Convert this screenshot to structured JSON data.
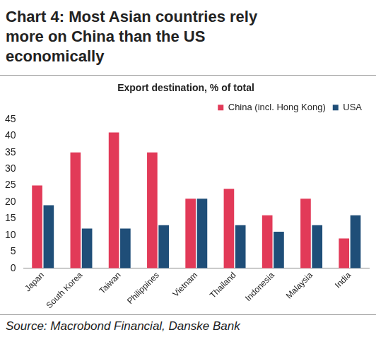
{
  "chart_data": {
    "type": "bar",
    "title": "Chart 4: Most Asian countries rely more on China than the US economically",
    "subtitle": "Export destination, % of total",
    "source": "Source: Macrobond Financial, Danske Bank",
    "categories": [
      "Japan",
      "South Korea",
      "Taiwan",
      "Philippines",
      "Vietnam",
      "Thailand",
      "Indonesia",
      "Malaysia",
      "India"
    ],
    "series": [
      {
        "name": "China (incl. Hong Kong)",
        "color": "#e23a58",
        "values": [
          25,
          35,
          41,
          35,
          21,
          24,
          16,
          21,
          9
        ]
      },
      {
        "name": "USA",
        "color": "#1f4e78",
        "values": [
          19,
          12,
          12,
          13,
          21,
          13,
          11,
          13,
          16
        ]
      }
    ],
    "ylim": [
      0,
      45
    ],
    "yticks": [
      0,
      5,
      10,
      15,
      20,
      25,
      30,
      35,
      40,
      45
    ],
    "grid": false,
    "legend": "upper right"
  }
}
